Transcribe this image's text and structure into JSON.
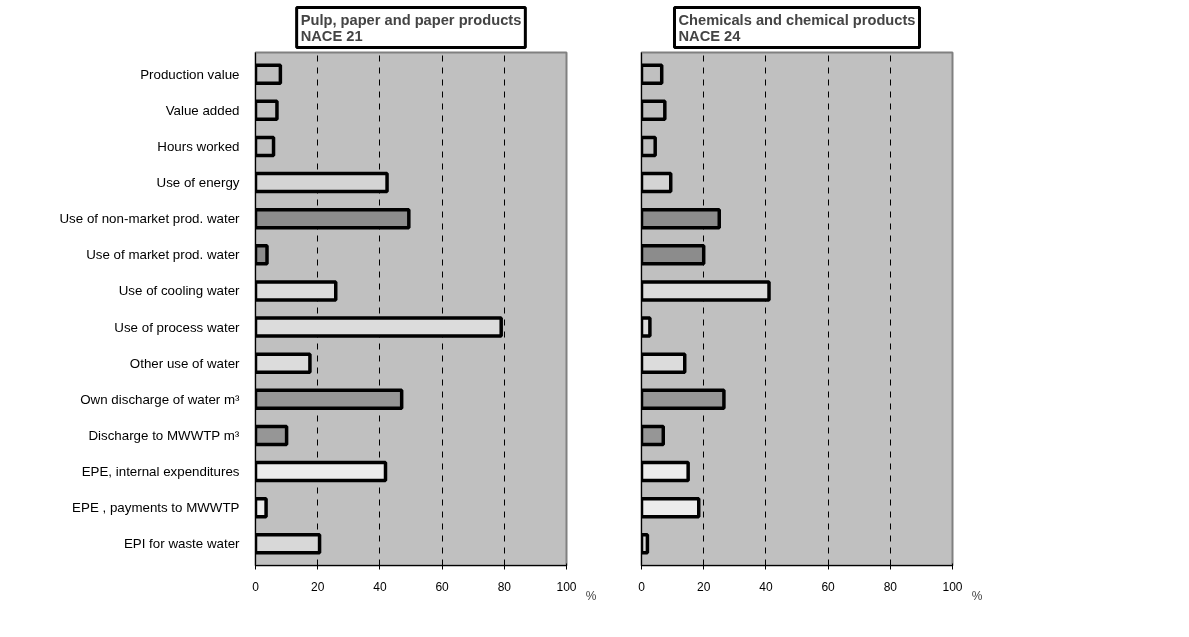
{
  "chart_data": [
    {
      "type": "bar",
      "orientation": "horizontal",
      "title": "Pulp, paper and paper products\nNACE 21",
      "xlabel": "%",
      "grid": "x",
      "xlim": [
        0,
        100
      ],
      "xticks": [
        0,
        20,
        40,
        60,
        80,
        100
      ],
      "categories": [
        "Production value",
        "Value added",
        "Hours worked",
        "Use of energy",
        "Use of non-market prod. water",
        "Use of market prod. water",
        "Use of cooling water",
        "Use of process water",
        "Other use of water",
        "Own discharge of water m³",
        "Discharge to MWWTP m³",
        "EPE, internal expenditures",
        "EPE , payments to MWWTP",
        "EPI for waste water"
      ],
      "values": [
        8.0,
        6.9,
        5.8,
        42.3,
        49.3,
        3.7,
        25.8,
        79,
        17.5,
        47,
        10,
        41.8,
        3.4,
        20.6
      ],
      "colors": [
        "#c0c0c0",
        "#c0c0c0",
        "#c0c0c0",
        "#d4d4d4",
        "#8c8c8c",
        "#8c8c8c",
        "#dcdcdc",
        "#dcdcdc",
        "#dcdcdc",
        "#969696",
        "#969696",
        "#ececec",
        "#ececec",
        "#d8d8d8"
      ]
    },
    {
      "type": "bar",
      "orientation": "horizontal",
      "title": "Chemicals and chemical products\nNACE 24",
      "xlabel": "%",
      "grid": "x",
      "xlim": [
        0,
        100
      ],
      "xticks": [
        0,
        20,
        40,
        60,
        80,
        100
      ],
      "tick_labels": "x",
      "categories": [
        null,
        null,
        null,
        null,
        null,
        null,
        null,
        null,
        null,
        null,
        null,
        null,
        null,
        null
      ],
      "values": [
        6.5,
        7.5,
        4.4,
        9.4,
        25,
        20,
        41,
        2.7,
        13.9,
        26.5,
        7,
        15,
        18.4,
        1.9
      ],
      "colors": [
        "#c0c0c0",
        "#c0c0c0",
        "#c0c0c0",
        "#d4d4d4",
        "#8c8c8c",
        "#8c8c8c",
        "#dcdcdc",
        "#dcdcdc",
        "#dcdcdc",
        "#969696",
        "#969696",
        "#ececec",
        "#ececec",
        "#d8d8d8"
      ]
    }
  ]
}
